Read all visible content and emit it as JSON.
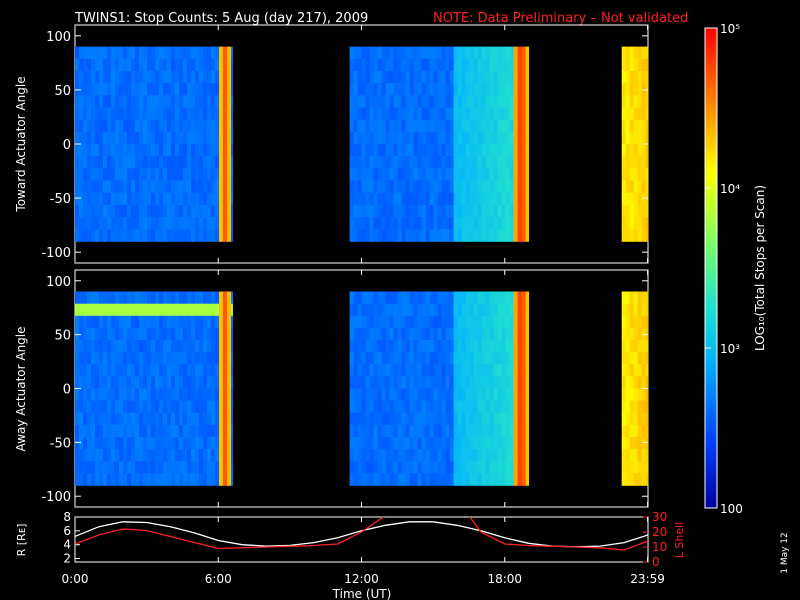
{
  "title": {
    "main": "TWINS1: Stop Counts:  5 Aug (day 217), 2009",
    "note": "NOTE: Data Preliminary – Not validated",
    "note_color": "#ff2020"
  },
  "footer_date": "1 May 12",
  "colorbar": {
    "label": "LOG₁₀(Total Stops per Scan)",
    "tick_labels": [
      "10⁵",
      "10⁴",
      "10³",
      "100"
    ],
    "scale": "log",
    "range": [
      100,
      100000
    ],
    "colormap": [
      "#0000a0",
      "#0040ff",
      "#00b0ff",
      "#20e0d0",
      "#80ff60",
      "#ffff00",
      "#ff8000",
      "#ff0000"
    ]
  },
  "panels": {
    "toward": {
      "ylabel": "Toward Actuator Angle"
    },
    "away": {
      "ylabel": "Away Actuator Angle"
    },
    "orbit": {
      "ylabel_left": "R [Rᴇ]",
      "ylabel_right": "L Shell"
    }
  },
  "x_axis": {
    "label": "Time (UT)",
    "tick_labels": [
      "0:00",
      "6:00",
      "12:00",
      "18:00",
      "23:59"
    ]
  },
  "chart_data": [
    {
      "type": "heatmap",
      "panel": "toward",
      "ylabel": "Toward Actuator Angle",
      "xlabel": "",
      "xlim": [
        0,
        24
      ],
      "ylim": [
        -110,
        110
      ],
      "y_ticks": [
        100,
        50,
        0,
        -50,
        -100
      ],
      "data_extent_y": [
        -90,
        90
      ],
      "data_intervals_hours": [
        [
          0,
          6.6
        ],
        [
          11.5,
          19.0
        ],
        [
          22.9,
          24
        ]
      ],
      "typical_log10_counts": 2.6,
      "high_count_features": [
        {
          "t_hours": 6.2,
          "log10_counts": 4.7
        },
        {
          "t_hours": 18.6,
          "log10_counts": 4.9
        }
      ]
    },
    {
      "type": "heatmap",
      "panel": "away",
      "ylabel": "Away Actuator Angle",
      "xlabel": "",
      "xlim": [
        0,
        24
      ],
      "ylim": [
        -110,
        110
      ],
      "y_ticks": [
        100,
        50,
        0,
        -50,
        -100
      ],
      "data_extent_y": [
        -90,
        90
      ],
      "data_intervals_hours": [
        [
          0,
          6.6
        ],
        [
          11.5,
          19.0
        ],
        [
          22.9,
          24
        ]
      ],
      "typical_log10_counts": 2.6,
      "high_count_features": [
        {
          "t_hours": 6.2,
          "log10_counts": 4.7
        },
        {
          "angle_deg": 75,
          "log10_counts": 4.0
        },
        {
          "t_hours": 18.6,
          "log10_counts": 4.9
        }
      ]
    },
    {
      "type": "line",
      "panel": "orbit",
      "xlabel": "Time (UT)",
      "xlim": [
        0,
        24
      ],
      "ylim_left": [
        1.5,
        8
      ],
      "ylim_right": [
        0,
        30
      ],
      "y_ticks_left": [
        8,
        6,
        4,
        2
      ],
      "y_ticks_right": [
        30,
        20,
        10,
        0
      ],
      "series": [
        {
          "color": "#ffffff",
          "axis": "left",
          "x": [
            0,
            1,
            2,
            3,
            4,
            5,
            6,
            7,
            8,
            9,
            10,
            11,
            12,
            13,
            14,
            15,
            16,
            17,
            18,
            19,
            20,
            21,
            22,
            23,
            24
          ],
          "y": [
            5.2,
            6.6,
            7.3,
            7.2,
            6.6,
            5.7,
            4.6,
            4.0,
            3.8,
            3.9,
            4.3,
            5.0,
            6.0,
            6.8,
            7.3,
            7.3,
            6.8,
            6.0,
            5.0,
            4.2,
            3.8,
            3.7,
            3.8,
            4.3,
            5.4
          ]
        },
        {
          "color": "#ff2020",
          "axis": "right",
          "x": [
            0,
            1,
            2,
            3,
            4,
            5,
            6,
            7,
            8,
            9,
            10,
            11,
            12,
            13,
            13.5,
            16,
            16.5,
            17,
            18,
            19,
            20,
            21,
            22,
            23,
            24
          ],
          "y": [
            12,
            18,
            22,
            21,
            17,
            13,
            9,
            9.5,
            10,
            10.5,
            11,
            12,
            20,
            31,
            34,
            34,
            31,
            20,
            12,
            11,
            10.5,
            10,
            9.5,
            8,
            14
          ]
        }
      ]
    }
  ]
}
